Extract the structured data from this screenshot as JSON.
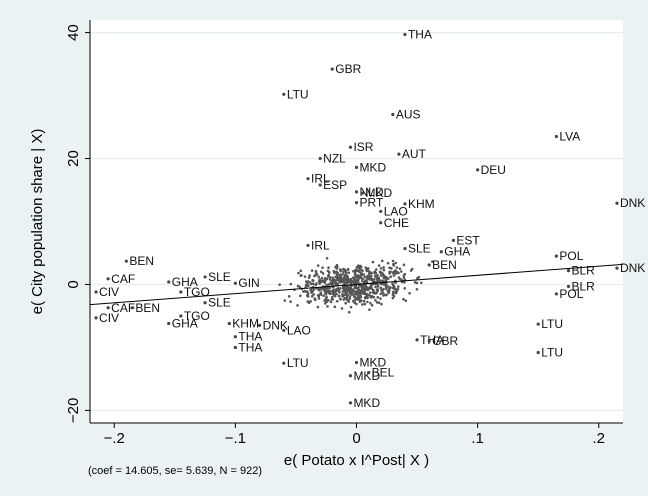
{
  "chart_data": {
    "type": "scatter",
    "title": "",
    "xlabel": "e( Potato x I^Post| X )",
    "ylabel": "e( City population share | X)",
    "xlim": [
      -0.22,
      0.22
    ],
    "ylim": [
      -22,
      42
    ],
    "xticks": [
      -0.2,
      -0.1,
      0,
      0.1,
      0.2
    ],
    "xtick_labels": [
      "−.2",
      "−.1",
      "0",
      ".1",
      ".2"
    ],
    "yticks": [
      -20,
      0,
      20,
      40
    ],
    "ytick_labels": [
      "−20",
      "0",
      "20",
      "40"
    ],
    "grid": "horizontal",
    "fit_line": {
      "x": [
        -0.22,
        0.22
      ],
      "y": [
        -3.2,
        3.2
      ]
    },
    "note": "(coef = 14.605, se= 5.639, N = 922)",
    "points": [
      {
        "x": 0.04,
        "y": 39.7,
        "label": "THA"
      },
      {
        "x": -0.02,
        "y": 34.2,
        "label": "GBR"
      },
      {
        "x": 0.03,
        "y": 27.0,
        "label": "AUS"
      },
      {
        "x": -0.06,
        "y": 30.2,
        "label": "LTU"
      },
      {
        "x": 0.165,
        "y": 23.5,
        "label": "LVA"
      },
      {
        "x": -0.03,
        "y": 20.0,
        "label": "NZL"
      },
      {
        "x": -0.005,
        "y": 21.8,
        "label": "ISR"
      },
      {
        "x": 0.035,
        "y": 20.7,
        "label": "AUT"
      },
      {
        "x": 0.0,
        "y": 18.6,
        "label": "MKD"
      },
      {
        "x": 0.1,
        "y": 18.2,
        "label": "DEU"
      },
      {
        "x": 0.215,
        "y": 12.9,
        "label": "DNK"
      },
      {
        "x": -0.04,
        "y": 16.8,
        "label": "IRL"
      },
      {
        "x": -0.03,
        "y": 15.8,
        "label": "ESP"
      },
      {
        "x": 0.0,
        "y": 14.7,
        "label": "NLD"
      },
      {
        "x": 0.005,
        "y": 14.5,
        "label": "MKD"
      },
      {
        "x": 0.0,
        "y": 13.0,
        "label": "PRT"
      },
      {
        "x": 0.04,
        "y": 12.8,
        "label": "KHM"
      },
      {
        "x": 0.02,
        "y": 11.6,
        "label": "LAO"
      },
      {
        "x": 0.02,
        "y": 9.8,
        "label": "CHE"
      },
      {
        "x": 0.08,
        "y": 7.0,
        "label": "EST"
      },
      {
        "x": 0.04,
        "y": 5.7,
        "label": "SLE"
      },
      {
        "x": 0.07,
        "y": 5.2,
        "label": "GHA"
      },
      {
        "x": 0.06,
        "y": 3.1,
        "label": "BEN"
      },
      {
        "x": -0.04,
        "y": 6.2,
        "label": "IRL"
      },
      {
        "x": -0.19,
        "y": 3.7,
        "label": "BEN"
      },
      {
        "x": -0.205,
        "y": 0.9,
        "label": "CAF"
      },
      {
        "x": -0.215,
        "y": -1.2,
        "label": "CIV"
      },
      {
        "x": -0.205,
        "y": -3.7,
        "label": "CAF"
      },
      {
        "x": -0.215,
        "y": -5.3,
        "label": "CIV"
      },
      {
        "x": -0.185,
        "y": -3.7,
        "label": "BEN"
      },
      {
        "x": -0.155,
        "y": 0.4,
        "label": "GHA"
      },
      {
        "x": -0.145,
        "y": -1.2,
        "label": "TGO"
      },
      {
        "x": -0.125,
        "y": 1.2,
        "label": "SLE"
      },
      {
        "x": -0.1,
        "y": 0.2,
        "label": "GIN"
      },
      {
        "x": -0.155,
        "y": -6.2,
        "label": "GHA"
      },
      {
        "x": -0.145,
        "y": -5.0,
        "label": "TGO"
      },
      {
        "x": -0.125,
        "y": -2.9,
        "label": "SLE"
      },
      {
        "x": -0.105,
        "y": -6.2,
        "label": "KHM"
      },
      {
        "x": -0.08,
        "y": -6.5,
        "label": "DNK"
      },
      {
        "x": -0.1,
        "y": -8.3,
        "label": "THA"
      },
      {
        "x": -0.1,
        "y": -10.0,
        "label": "THA"
      },
      {
        "x": -0.06,
        "y": -7.3,
        "label": "LAO"
      },
      {
        "x": -0.06,
        "y": -12.5,
        "label": "LTU"
      },
      {
        "x": -0.005,
        "y": -14.5,
        "label": "MKD"
      },
      {
        "x": 0.01,
        "y": -14.0,
        "label": "BEL"
      },
      {
        "x": 0.0,
        "y": -12.4,
        "label": "MKD"
      },
      {
        "x": -0.005,
        "y": -18.8,
        "label": "MKD"
      },
      {
        "x": 0.05,
        "y": -8.8,
        "label": "THA"
      },
      {
        "x": 0.06,
        "y": -9.0,
        "label": "GBR"
      },
      {
        "x": 0.165,
        "y": 4.5,
        "label": "POL"
      },
      {
        "x": 0.165,
        "y": -1.5,
        "label": "POL"
      },
      {
        "x": 0.175,
        "y": 2.2,
        "label": "BLR"
      },
      {
        "x": 0.175,
        "y": -0.3,
        "label": "BLR"
      },
      {
        "x": 0.15,
        "y": -6.3,
        "label": "LTU"
      },
      {
        "x": 0.15,
        "y": -10.8,
        "label": "LTU"
      },
      {
        "x": 0.215,
        "y": 2.6,
        "label": "DNK"
      }
    ]
  }
}
